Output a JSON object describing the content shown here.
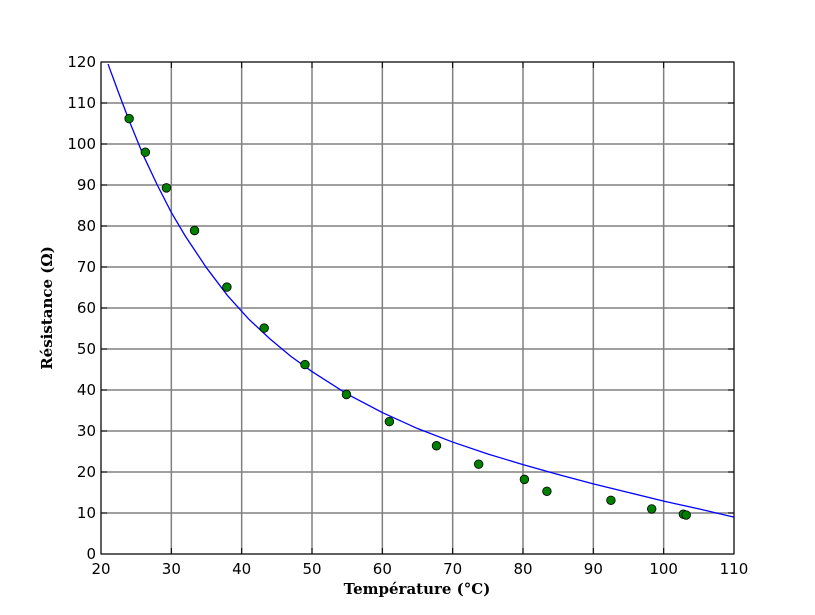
{
  "chart_data": {
    "type": "scatter",
    "title": "",
    "xlabel": "Température (°C)",
    "ylabel": "Résistance (Ω)",
    "xlim": [
      20,
      110
    ],
    "ylim": [
      0,
      120
    ],
    "xticks": [
      20,
      30,
      40,
      50,
      60,
      70,
      80,
      90,
      100,
      110
    ],
    "yticks": [
      0,
      10,
      20,
      30,
      40,
      50,
      60,
      70,
      80,
      90,
      100,
      110,
      120
    ],
    "grid": true,
    "colors": {
      "points": "#008000",
      "point_edge": "#000000",
      "fit_line": "#0000ff",
      "grid": "#808080"
    },
    "series": [
      {
        "kind": "points",
        "x": [
          24.0,
          26.3,
          29.3,
          33.3,
          37.9,
          43.2,
          49.0,
          54.9,
          61.0,
          67.7,
          73.7,
          80.2,
          83.4,
          92.5,
          98.3,
          102.8,
          103.2
        ],
        "y": [
          106.2,
          98.0,
          89.3,
          78.9,
          65.1,
          55.1,
          46.2,
          38.9,
          32.3,
          26.4,
          21.9,
          18.2,
          15.3,
          13.1,
          11.0,
          9.7,
          9.5
        ]
      },
      {
        "kind": "fit_line",
        "x": [
          21.0,
          22.5,
          24.0,
          26.0,
          28.0,
          30.0,
          32.0,
          35.0,
          38.0,
          41.0,
          44.0,
          47.0,
          50.0,
          55.0,
          60.0,
          65.0,
          70.0,
          75.0,
          80.0,
          85.0,
          90.0,
          95.0,
          100.0,
          105.0,
          110.0
        ],
        "y": [
          119.5,
          112.5,
          105.7,
          97.3,
          90.0,
          83.3,
          77.5,
          69.8,
          63.0,
          57.3,
          52.5,
          48.2,
          44.5,
          39.0,
          34.5,
          30.6,
          27.3,
          24.4,
          21.8,
          19.4,
          17.1,
          15.0,
          12.9,
          11.0,
          9.0
        ]
      }
    ]
  }
}
